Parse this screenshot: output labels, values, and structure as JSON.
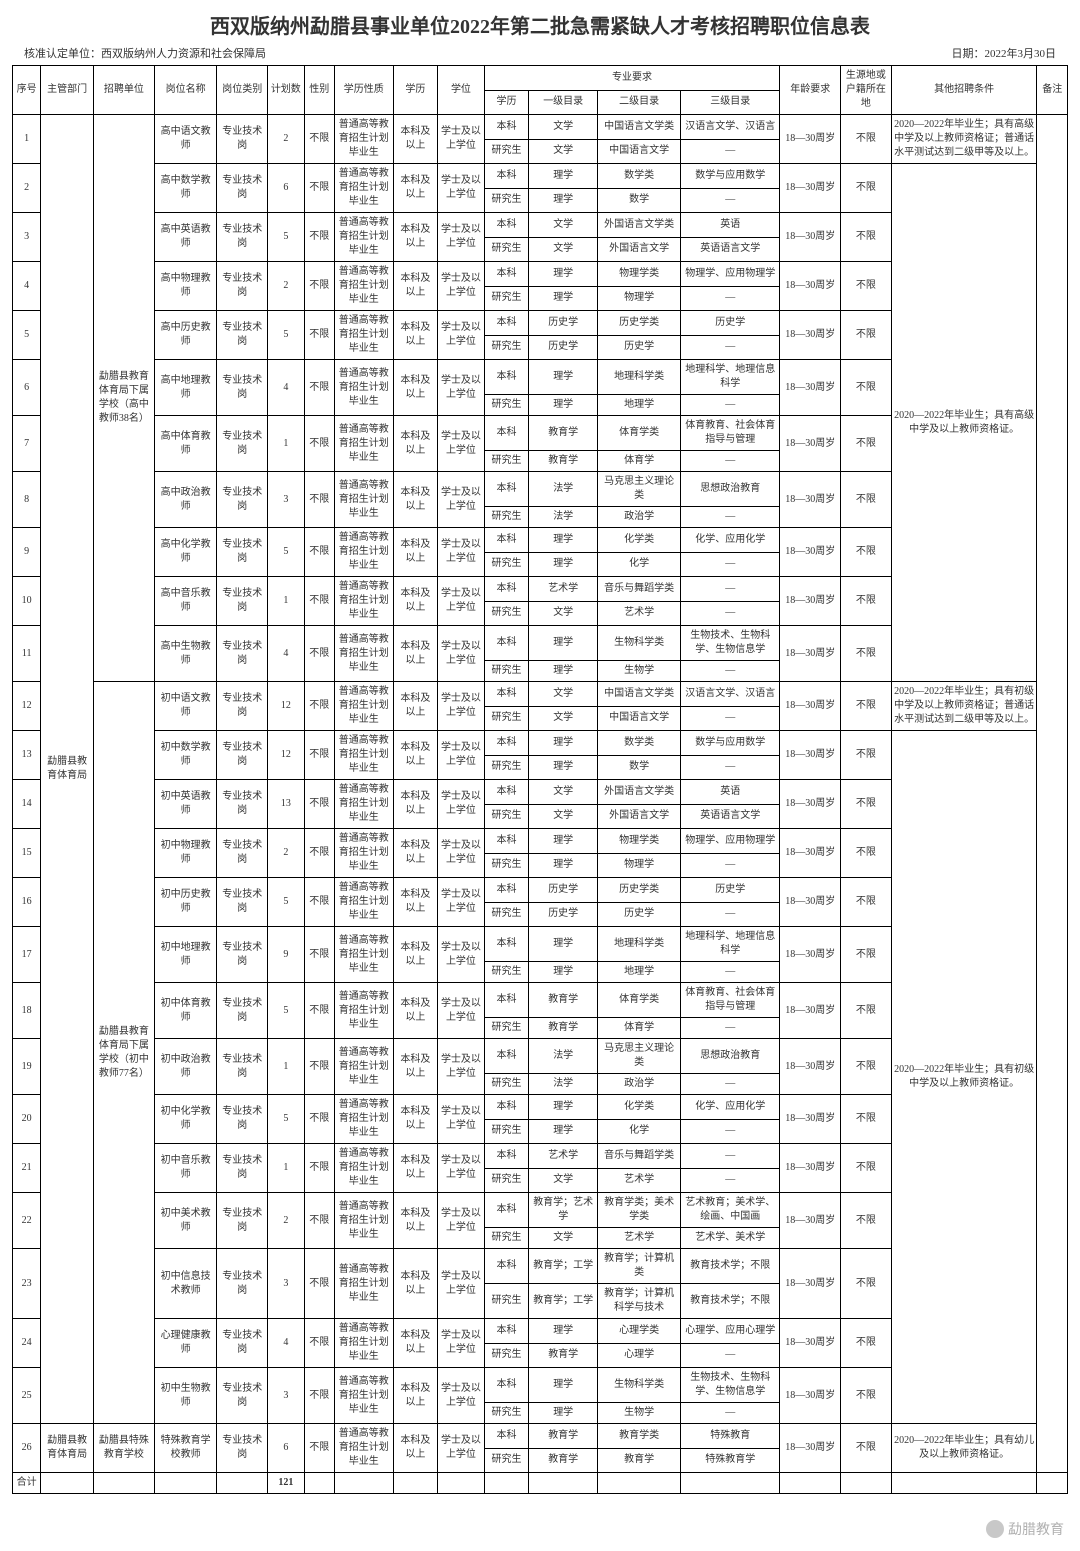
{
  "title": "西双版纳州勐腊县事业单位2022年第二批急需紧缺人才考核招聘职位信息表",
  "meta": {
    "left": "核准认定单位：西双版纳州人力资源和社会保障局",
    "right": "日期：2022年3月30日"
  },
  "header": {
    "c1": "序号",
    "c2": "主管部门",
    "c3": "招聘单位",
    "c4": "岗位名称",
    "c5": "岗位类别",
    "c6": "计划数",
    "c7": "性别",
    "c8": "学历性质",
    "c9": "学历",
    "c10": "学位",
    "major": "专业要求",
    "m1": "学历",
    "m2": "一级目录",
    "m3": "二级目录",
    "m4": "三级目录",
    "c15": "年龄要求",
    "c16": "生源地或户籍所在地",
    "c17": "其他招聘条件",
    "c18": "备注"
  },
  "dept1": "勐腊县教育体育局",
  "unit1": "勐腊县教育体育局下属学校（高中教师38名）",
  "unit2": "勐腊县教育体育局下属学校（初中教师77名）",
  "unit3": "勐腊县特殊教育学校",
  "common": {
    "posCat": "专业技术岗",
    "gender": "不限",
    "eduNature": "普通高等教育招生计划毕业生",
    "edu": "本科及以上",
    "degree": "学士及以上学位",
    "lvBk": "本科",
    "lvYj": "研究生",
    "age": "18—30周岁",
    "loc": "不限"
  },
  "other1": "2020—2022年毕业生；具有高级中学及以上教师资格证；普通话水平测试达到二级甲等及以上。",
  "other2": "2020—2022年毕业生；具有高级中学及以上教师资格证。",
  "other3": "2020—2022年毕业生；具有初级中学及以上教师资格证；普通话水平测试达到二级甲等及以上。",
  "other4": "2020—2022年毕业生；具有初级中学及以上教师资格证。",
  "other5": "2020—2022年毕业生；具有幼儿及以上教师资格证。",
  "rows": [
    {
      "n": "1",
      "pos": "高中语文教师",
      "cnt": "2",
      "bk": [
        "文学",
        "中国语言文学类",
        "汉语言文学、汉语言"
      ],
      "yj": [
        "文学",
        "中国语言文学",
        "—"
      ]
    },
    {
      "n": "2",
      "pos": "高中数学教师",
      "cnt": "6",
      "bk": [
        "理学",
        "数学类",
        "数学与应用数学"
      ],
      "yj": [
        "理学",
        "数学",
        "—"
      ]
    },
    {
      "n": "3",
      "pos": "高中英语教师",
      "cnt": "5",
      "bk": [
        "文学",
        "外国语言文学类",
        "英语"
      ],
      "yj": [
        "文学",
        "外国语言文学",
        "英语语言文学"
      ]
    },
    {
      "n": "4",
      "pos": "高中物理教师",
      "cnt": "2",
      "bk": [
        "理学",
        "物理学类",
        "物理学、应用物理学"
      ],
      "yj": [
        "理学",
        "物理学",
        "—"
      ]
    },
    {
      "n": "5",
      "pos": "高中历史教师",
      "cnt": "5",
      "bk": [
        "历史学",
        "历史学类",
        "历史学"
      ],
      "yj": [
        "历史学",
        "历史学",
        "—"
      ]
    },
    {
      "n": "6",
      "pos": "高中地理教师",
      "cnt": "4",
      "bk": [
        "理学",
        "地理科学类",
        "地理科学、地理信息科学"
      ],
      "yj": [
        "理学",
        "地理学",
        "—"
      ]
    },
    {
      "n": "7",
      "pos": "高中体育教师",
      "cnt": "1",
      "bk": [
        "教育学",
        "体育学类",
        "体育教育、社会体育指导与管理"
      ],
      "yj": [
        "教育学",
        "体育学",
        "—"
      ]
    },
    {
      "n": "8",
      "pos": "高中政治教师",
      "cnt": "3",
      "bk": [
        "法学",
        "马克思主义理论类",
        "思想政治教育"
      ],
      "yj": [
        "法学",
        "政治学",
        "—"
      ]
    },
    {
      "n": "9",
      "pos": "高中化学教师",
      "cnt": "5",
      "bk": [
        "理学",
        "化学类",
        "化学、应用化学"
      ],
      "yj": [
        "理学",
        "化学",
        "—"
      ]
    },
    {
      "n": "10",
      "pos": "高中音乐教师",
      "cnt": "1",
      "bk": [
        "艺术学",
        "音乐与舞蹈学类",
        "—"
      ],
      "yj": [
        "文学",
        "艺术学",
        "—"
      ]
    },
    {
      "n": "11",
      "pos": "高中生物教师",
      "cnt": "4",
      "bk": [
        "理学",
        "生物科学类",
        "生物技术、生物科学、生物信息学"
      ],
      "yj": [
        "理学",
        "生物学",
        "—"
      ]
    },
    {
      "n": "12",
      "pos": "初中语文教师",
      "cnt": "12",
      "bk": [
        "文学",
        "中国语言文学类",
        "汉语言文学、汉语言"
      ],
      "yj": [
        "文学",
        "中国语言文学",
        "—"
      ]
    },
    {
      "n": "13",
      "pos": "初中数学教师",
      "cnt": "12",
      "bk": [
        "理学",
        "数学类",
        "数学与应用数学"
      ],
      "yj": [
        "理学",
        "数学",
        "—"
      ]
    },
    {
      "n": "14",
      "pos": "初中英语教师",
      "cnt": "13",
      "bk": [
        "文学",
        "外国语言文学类",
        "英语"
      ],
      "yj": [
        "文学",
        "外国语言文学",
        "英语语言文学"
      ]
    },
    {
      "n": "15",
      "pos": "初中物理教师",
      "cnt": "2",
      "bk": [
        "理学",
        "物理学类",
        "物理学、应用物理学"
      ],
      "yj": [
        "理学",
        "物理学",
        "—"
      ]
    },
    {
      "n": "16",
      "pos": "初中历史教师",
      "cnt": "5",
      "bk": [
        "历史学",
        "历史学类",
        "历史学"
      ],
      "yj": [
        "历史学",
        "历史学",
        "—"
      ]
    },
    {
      "n": "17",
      "pos": "初中地理教师",
      "cnt": "9",
      "bk": [
        "理学",
        "地理科学类",
        "地理科学、地理信息科学"
      ],
      "yj": [
        "理学",
        "地理学",
        "—"
      ]
    },
    {
      "n": "18",
      "pos": "初中体育教师",
      "cnt": "5",
      "bk": [
        "教育学",
        "体育学类",
        "体育教育、社会体育指导与管理"
      ],
      "yj": [
        "教育学",
        "体育学",
        "—"
      ]
    },
    {
      "n": "19",
      "pos": "初中政治教师",
      "cnt": "1",
      "bk": [
        "法学",
        "马克思主义理论类",
        "思想政治教育"
      ],
      "yj": [
        "法学",
        "政治学",
        "—"
      ]
    },
    {
      "n": "20",
      "pos": "初中化学教师",
      "cnt": "5",
      "bk": [
        "理学",
        "化学类",
        "化学、应用化学"
      ],
      "yj": [
        "理学",
        "化学",
        "—"
      ]
    },
    {
      "n": "21",
      "pos": "初中音乐教师",
      "cnt": "1",
      "bk": [
        "艺术学",
        "音乐与舞蹈学类",
        "—"
      ],
      "yj": [
        "文学",
        "艺术学",
        "—"
      ]
    },
    {
      "n": "22",
      "pos": "初中美术教师",
      "cnt": "2",
      "bk": [
        "教育学；艺术学",
        "教育学类；美术学类",
        "艺术教育；美术学、绘画、中国画"
      ],
      "yj": [
        "文学",
        "艺术学",
        "艺术学、美术学"
      ]
    },
    {
      "n": "23",
      "pos": "初中信息技术教师",
      "cnt": "3",
      "bk": [
        "教育学；工学",
        "教育学；计算机类",
        "教育技术学；不限"
      ],
      "yj": [
        "教育学；工学",
        "教育学；计算机科学与技术",
        "教育技术学；不限"
      ]
    },
    {
      "n": "24",
      "pos": "心理健康教师",
      "cnt": "4",
      "bk": [
        "理学",
        "心理学类",
        "心理学、应用心理学"
      ],
      "yj": [
        "教育学",
        "心理学",
        "—"
      ]
    },
    {
      "n": "25",
      "pos": "初中生物教师",
      "cnt": "3",
      "bk": [
        "理学",
        "生物科学类",
        "生物技术、生物科学、生物信息学"
      ],
      "yj": [
        "理学",
        "生物学",
        "—"
      ]
    },
    {
      "n": "26",
      "pos": "特殊教育学校教师",
      "cnt": "6",
      "bk": [
        "教育学",
        "教育学类",
        "特殊教育"
      ],
      "yj": [
        "教育学",
        "教育学",
        "特殊教育学"
      ]
    }
  ],
  "total": {
    "label": "合计",
    "sum": "121"
  },
  "watermark": "勐腊教育"
}
